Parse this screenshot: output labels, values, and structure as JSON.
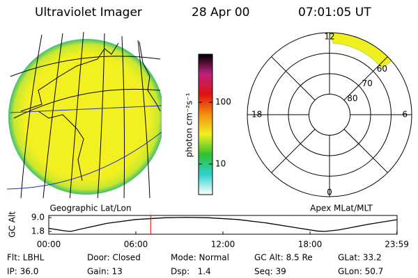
{
  "header": {
    "title": "Ultraviolet Imager",
    "date": "28 Apr 00",
    "time": "07:01:05 UT"
  },
  "chart_data": [
    {
      "type": "colorbar",
      "label": "photon cm⁻²s⁻¹",
      "log": true,
      "ylim": [
        3.2,
        600
      ],
      "yticks": [
        10,
        100
      ],
      "colors": [
        "#ffffff",
        "#30d0d0",
        "#30c030",
        "#f0f020",
        "#f09010",
        "#e01010",
        "#c02080",
        "#000000"
      ]
    },
    {
      "type": "polar",
      "subtitle": "Apex MLat/MLT",
      "rlim": [
        90,
        50
      ],
      "rticks": [
        80,
        70,
        60
      ],
      "theta_labels": [
        "12",
        "18",
        "0",
        "6"
      ]
    },
    {
      "type": "line",
      "ylabel": "GC Alt",
      "subtitle": "Geographic Lat/Lon",
      "x": [
        0,
        1,
        1.5,
        2.5,
        4,
        6,
        8,
        9.5,
        11,
        13,
        15,
        17,
        18.5,
        19,
        20,
        22,
        23.98
      ],
      "values": [
        3.4,
        2.2,
        1.8,
        3.5,
        6.0,
        8.0,
        8.9,
        9.1,
        8.9,
        8.0,
        6.2,
        3.8,
        2.0,
        1.8,
        2.6,
        5.5,
        7.9
      ],
      "color": "#000000",
      "marker_x": 7.02,
      "marker_color": "#e00000",
      "xlim": [
        0,
        24
      ],
      "ylim": [
        0.36,
        10.1
      ],
      "xticks": [
        {
          "value": 0,
          "label": "00:00"
        },
        {
          "value": 6,
          "label": "06:00"
        },
        {
          "value": 12,
          "label": "12:00"
        },
        {
          "value": 18,
          "label": "18:00"
        },
        {
          "value": 23.98,
          "label": "23:59"
        }
      ],
      "yticks": [
        {
          "value": 9,
          "label": "9.0"
        },
        1.8
      ]
    }
  ],
  "footer": {
    "rows": [
      [
        "Flt: LBHL",
        "Door: Closed",
        "Mode: Normal",
        "GC Alt: 8.5 Re",
        "GLat: 33.2"
      ],
      [
        "IP: 36.0",
        "Gain: 13",
        "Dsp:   1.4",
        "Seq: 39",
        "GLon: 50.7"
      ]
    ]
  }
}
